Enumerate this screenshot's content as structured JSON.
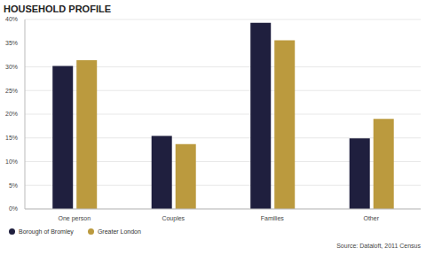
{
  "chart_data": {
    "type": "bar",
    "title": "HOUSEHOLD PROFILE",
    "source": "Source: Dataloft, 2011 Census",
    "categories": [
      "One person",
      "Couples",
      "Families",
      "Other"
    ],
    "series": [
      {
        "name": "Borough of Bromley",
        "color": "#1f1f3e",
        "values": [
          30.2,
          15.4,
          39.3,
          14.9
        ]
      },
      {
        "name": "Greater London",
        "color": "#bb9a3e",
        "values": [
          31.4,
          13.7,
          35.6,
          19.0
        ]
      }
    ],
    "ylim": [
      0,
      40
    ],
    "yticks": [
      {
        "value": 0,
        "label": "0%"
      },
      {
        "value": 5,
        "label": "5%"
      },
      {
        "value": 10,
        "label": "10%"
      },
      {
        "value": 15,
        "label": "15%"
      },
      {
        "value": 20,
        "label": "20%"
      },
      {
        "value": 25,
        "label": "25%"
      },
      {
        "value": 30,
        "label": "30%"
      },
      {
        "value": 35,
        "label": "35%"
      },
      {
        "value": 40,
        "label": "40%"
      }
    ],
    "grid": true,
    "legend": "lower left"
  }
}
